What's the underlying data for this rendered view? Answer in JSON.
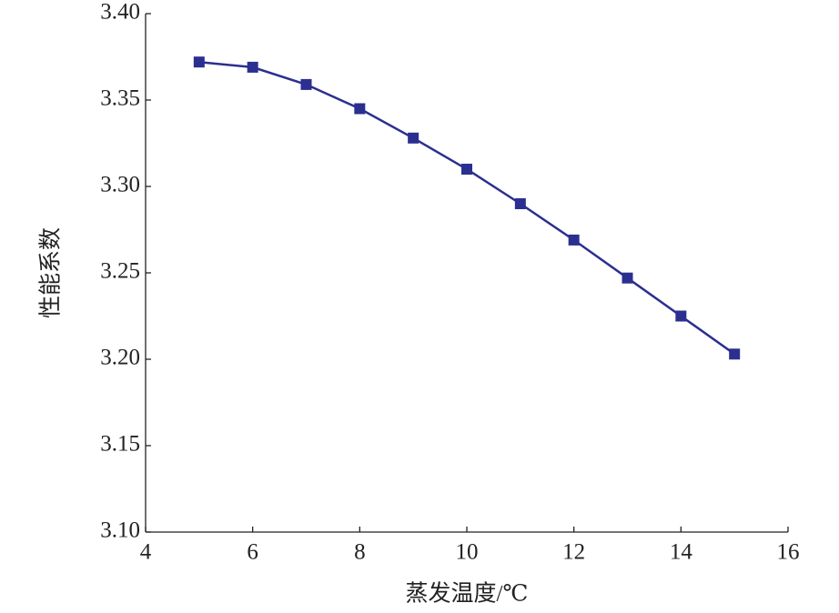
{
  "chart_data": {
    "type": "line",
    "xlabel": "蒸发温度/℃",
    "ylabel": "性能系数",
    "x": [
      5,
      6,
      7,
      8,
      9,
      10,
      11,
      12,
      13,
      14,
      15
    ],
    "series": [
      {
        "color": "#2b2f8f",
        "values": [
          3.372,
          3.369,
          3.359,
          3.345,
          3.328,
          3.31,
          3.29,
          3.269,
          3.247,
          3.225,
          3.203
        ]
      }
    ],
    "xlim": [
      4,
      16
    ],
    "xticks": [
      4,
      6,
      8,
      10,
      12,
      14,
      16
    ],
    "ylim": [
      3.1,
      3.4
    ],
    "yticks": [
      {
        "value": 3.1,
        "label": "3.10"
      },
      3.15,
      {
        "value": 3.2,
        "label": "3.20"
      },
      3.25,
      {
        "value": 3.3,
        "label": "3.30"
      },
      3.35,
      {
        "value": 3.4,
        "label": "3.40"
      }
    ],
    "grid": false
  }
}
